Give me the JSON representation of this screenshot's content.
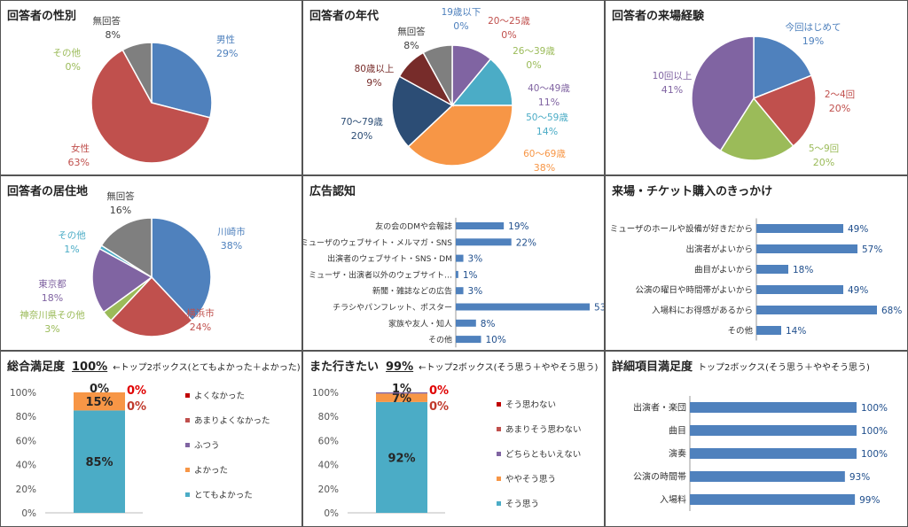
{
  "chart_data": [
    {
      "id": "p1",
      "type": "pie",
      "title": "回答者の性別",
      "slices": [
        {
          "label": "男性",
          "value": 29,
          "color": "#4f81bd"
        },
        {
          "label": "女性",
          "value": 63,
          "color": "#c0504d"
        },
        {
          "label": "その他",
          "value": 0,
          "color": "#9bbb59"
        },
        {
          "label": "無回答",
          "value": 8,
          "color": "#7f7f7f"
        }
      ]
    },
    {
      "id": "p2",
      "type": "pie",
      "title": "回答者の年代",
      "slices": [
        {
          "label": "19歳以下",
          "value": 0,
          "color": "#4f81bd"
        },
        {
          "label": "20～25歳",
          "value": 0,
          "color": "#c0504d"
        },
        {
          "label": "26～39歳",
          "value": 0,
          "color": "#9bbb59"
        },
        {
          "label": "40～49歳",
          "value": 11,
          "color": "#8064a2"
        },
        {
          "label": "50～59歳",
          "value": 14,
          "color": "#4bacc6"
        },
        {
          "label": "60～69歳",
          "value": 38,
          "color": "#f79646"
        },
        {
          "label": "70～79歳",
          "value": 20,
          "color": "#2c4d75"
        },
        {
          "label": "80歳以上",
          "value": 9,
          "color": "#772c2a"
        },
        {
          "label": "無回答",
          "value": 8,
          "color": "#7f7f7f"
        }
      ]
    },
    {
      "id": "p3",
      "type": "pie",
      "title": "回答者の来場経験",
      "slices": [
        {
          "label": "今回はじめて",
          "value": 19,
          "color": "#4f81bd"
        },
        {
          "label": "2～4回",
          "value": 20,
          "color": "#c0504d"
        },
        {
          "label": "5～9回",
          "value": 20,
          "color": "#9bbb59"
        },
        {
          "label": "10回以上",
          "value": 41,
          "color": "#8064a2"
        }
      ]
    },
    {
      "id": "p4",
      "type": "pie",
      "title": "回答者の居住地",
      "slices": [
        {
          "label": "川崎市",
          "value": 38,
          "color": "#4f81bd"
        },
        {
          "label": "横浜市",
          "value": 24,
          "color": "#c0504d"
        },
        {
          "label": "神奈川県その他",
          "value": 3,
          "color": "#9bbb59"
        },
        {
          "label": "東京都",
          "value": 18,
          "color": "#8064a2"
        },
        {
          "label": "その他",
          "value": 1,
          "color": "#4bacc6"
        },
        {
          "label": "無回答",
          "value": 16,
          "color": "#7f7f7f"
        }
      ]
    },
    {
      "id": "p5",
      "type": "bar",
      "orientation": "horizontal",
      "title": "広告認知",
      "xlim": [
        0,
        100
      ],
      "categories": [
        "友の会のDMや会報誌",
        "ミューザのウェブサイト・メルマガ・SNS",
        "出演者のウェブサイト・SNS・DM",
        "ミューザ・出演者以外のウェブサイト…",
        "新聞・雑誌などの広告",
        "チラシやパンフレット、ポスター",
        "家族や友人・知人",
        "その他"
      ],
      "values": [
        19,
        22,
        3,
        1,
        3,
        53,
        8,
        10
      ]
    },
    {
      "id": "p6",
      "type": "bar",
      "orientation": "horizontal",
      "title": "来場・チケット購入のきっかけ",
      "xlim": [
        0,
        100
      ],
      "categories": [
        "ミューザのホールや設備が好きだから",
        "出演者がよいから",
        "曲目がよいから",
        "公演の曜日や時間帯がよいから",
        "入場料にお得感があるから",
        "その他"
      ],
      "values": [
        49,
        57,
        18,
        49,
        68,
        14
      ]
    },
    {
      "id": "p7",
      "type": "stacked-bar",
      "title": "総合満足度",
      "headline": "100%",
      "note": "←トップ2ボックス(とてもよかった＋よかった)",
      "ylim": [
        0,
        100
      ],
      "yticks": [
        "100%",
        "80%",
        "60%",
        "40%",
        "20%",
        "0%"
      ],
      "series": [
        {
          "name": "とてもよかった",
          "value": 85,
          "color": "#4bacc6",
          "label": "85%"
        },
        {
          "name": "よかった",
          "value": 15,
          "color": "#f79646",
          "label": "15%"
        },
        {
          "name": "ふつう",
          "value": 0,
          "color": "#8064a2",
          "label": "0%"
        },
        {
          "name": "あまりよくなかった",
          "value": 0,
          "color": "#c0504d",
          "label": "0%"
        },
        {
          "name": "よくなかった",
          "value": 0,
          "color": "#c00000",
          "label": "0%"
        }
      ],
      "legend": [
        "よくなかった",
        "あまりよくなかった",
        "ふつう",
        "よかった",
        "とてもよかった"
      ]
    },
    {
      "id": "p8",
      "type": "stacked-bar",
      "title": "また行きたい",
      "headline": "99%",
      "note": "←トップ2ボックス(そう思う＋ややそう思う)",
      "ylim": [
        0,
        100
      ],
      "yticks": [
        "100%",
        "80%",
        "60%",
        "40%",
        "20%",
        "0%"
      ],
      "series": [
        {
          "name": "そう思う",
          "value": 92,
          "color": "#4bacc6",
          "label": "92%"
        },
        {
          "name": "ややそう思う",
          "value": 7,
          "color": "#f79646",
          "label": "7%"
        },
        {
          "name": "どちらともいえない",
          "value": 1,
          "color": "#8064a2",
          "label": "1%"
        },
        {
          "name": "あまりそう思わない",
          "value": 0,
          "color": "#c0504d",
          "label": "0%"
        },
        {
          "name": "そう思わない",
          "value": 0,
          "color": "#c00000",
          "label": "0%"
        }
      ],
      "legend": [
        "そう思わない",
        "あまりそう思わない",
        "どちらともいえない",
        "ややそう思う",
        "そう思う"
      ]
    },
    {
      "id": "p9",
      "type": "bar",
      "orientation": "horizontal",
      "title": "詳細項目満足度",
      "note": "トップ2ボックス(そう思う＋ややそう思う)",
      "xlim": [
        0,
        100
      ],
      "categories": [
        "出演者・楽団",
        "曲目",
        "演奏",
        "公演の時間帯",
        "入場料"
      ],
      "values": [
        100,
        100,
        100,
        93,
        99
      ]
    }
  ]
}
